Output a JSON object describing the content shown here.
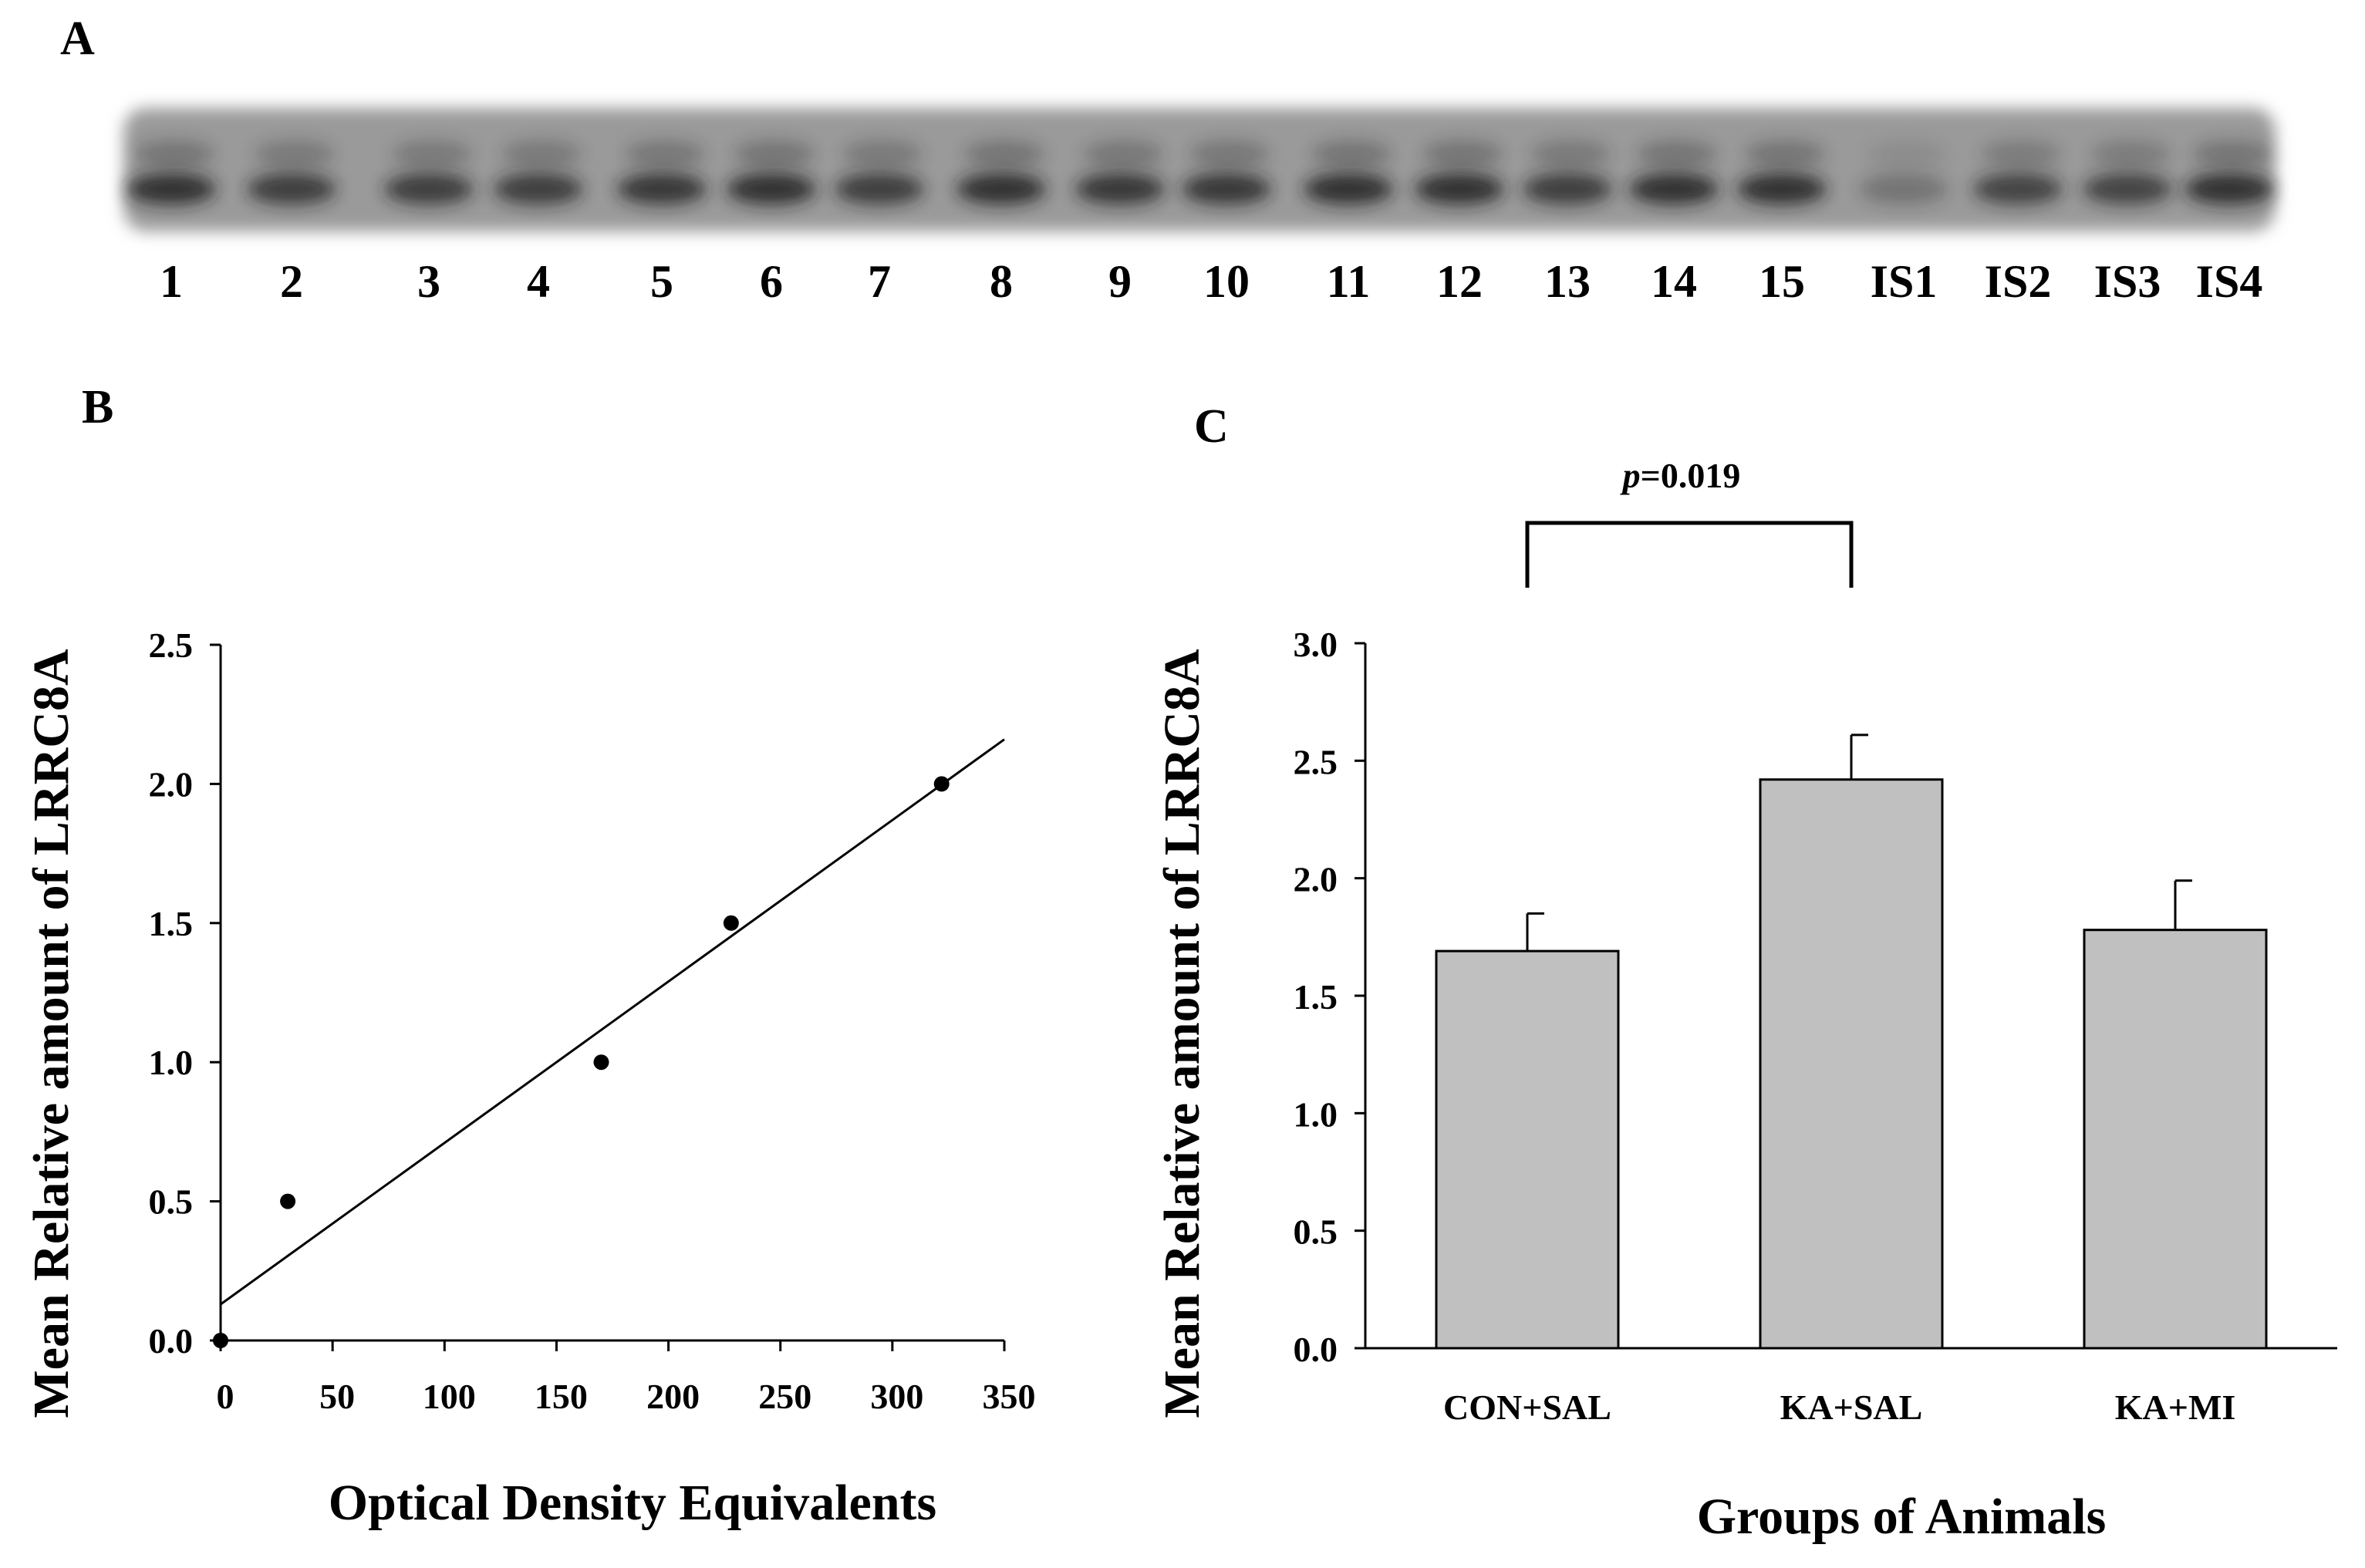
{
  "panels": {
    "a": {
      "letter": "A"
    },
    "b": {
      "letter": "B"
    },
    "c": {
      "letter": "C"
    }
  },
  "blot": {
    "lane_labels": [
      "1",
      "2",
      "3",
      "4",
      "5",
      "6",
      "7",
      "8",
      "9",
      "10",
      "11",
      "12",
      "13",
      "14",
      "15",
      "IS1",
      "IS2",
      "IS3",
      "IS4"
    ],
    "lane_intensity": [
      0.85,
      0.75,
      0.75,
      0.75,
      0.8,
      0.85,
      0.75,
      0.85,
      0.8,
      0.8,
      0.85,
      0.85,
      0.75,
      0.85,
      0.85,
      0.3,
      0.7,
      0.7,
      0.85
    ],
    "band_color": "#1e1e1e",
    "background_color": "#9a9a9a"
  },
  "chart_data": [
    {
      "panel": "B",
      "type": "scatter",
      "title": "",
      "xlabel": "Optical Density Equivalents",
      "ylabel": "Mean Relative amount of LRRC8A",
      "xlim": [
        0,
        350
      ],
      "ylim": [
        0,
        2.5
      ],
      "x_ticks": [
        "0",
        "50",
        "100",
        "150",
        "200",
        "250",
        "300",
        "350"
      ],
      "y_ticks": [
        "0.0",
        "0.5",
        "1.0",
        "1.5",
        "2.0",
        "2.5"
      ],
      "x": [
        0,
        30,
        170,
        228,
        322
      ],
      "y": [
        0,
        0.5,
        1.0,
        1.5,
        2.0
      ],
      "fit_line": {
        "x": [
          0,
          350
        ],
        "y": [
          0.13,
          2.16
        ]
      },
      "grid": false
    },
    {
      "panel": "C",
      "type": "bar",
      "title": "",
      "xlabel": "Groups of Animals",
      "ylabel": "Mean Relative amount of LRRC8A",
      "categories": [
        "CON+SAL",
        "KA+SAL",
        "KA+MI"
      ],
      "values": [
        1.69,
        2.42,
        1.78
      ],
      "errors": [
        0.16,
        0.19,
        0.21
      ],
      "ylim": [
        0,
        3.0
      ],
      "y_ticks": [
        "0.0",
        "0.5",
        "1.0",
        "1.5",
        "2.0",
        "2.5",
        "3.0"
      ],
      "bar_color": "#c0c0c0",
      "significance": {
        "between": [
          "CON+SAL",
          "KA+SAL"
        ],
        "label_p": "p",
        "label_value": "=0.019"
      },
      "grid": false
    }
  ]
}
